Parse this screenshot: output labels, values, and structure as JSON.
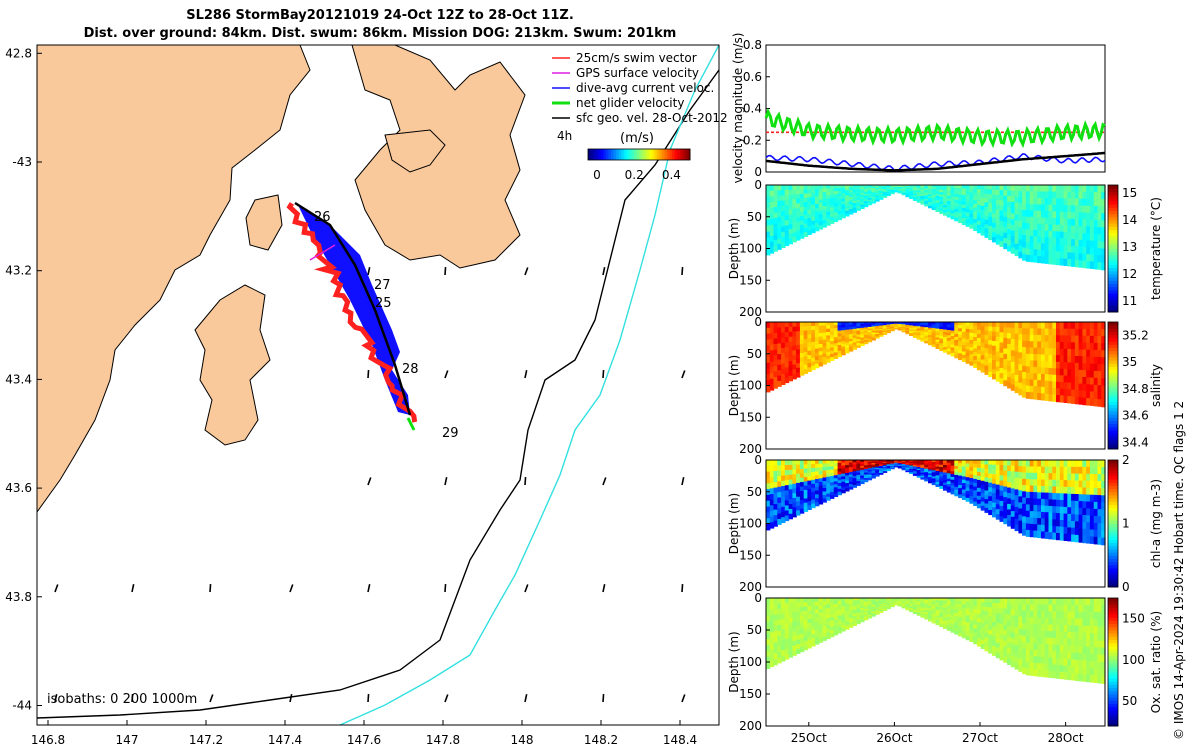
{
  "title": {
    "line1": "SL286 StormBay20121019 24-Oct 12Z to 28-Oct 11Z.",
    "line2": "Dist. over ground: 84km. Dist. swum: 86km. Mission DOG: 213km. Swum: 201km"
  },
  "colors": {
    "land": "#f9c89b",
    "sea": "#ffffff",
    "isobath_200": "#000000",
    "isobath_1000": "#33e0e0",
    "swim_vector": "#ff2020",
    "gps_velocity": "#e020e0",
    "dive_avg": "#1010ff",
    "net_glider": "#10e010",
    "sfc_geo": "#000000"
  },
  "map": {
    "lon_ticks": [
      "146.8",
      "147",
      "147.2",
      "147.4",
      "147.6",
      "147.8",
      "148",
      "148.2",
      "148.4"
    ],
    "lat_ticks": [
      "42.8",
      "-43",
      "43.2",
      "43.4",
      "43.6",
      "43.8",
      "-44"
    ],
    "day_labels": [
      "26",
      "27",
      "25",
      "28",
      "29"
    ],
    "isobaths_label": "isobaths: 0   200  1000m",
    "legend": [
      {
        "label": "25cm/s swim vector",
        "color": "#ff2020"
      },
      {
        "label": "GPS surface velocity",
        "color": "#e020e0"
      },
      {
        "label": "dive-avg current veloc.",
        "color": "#1010ff"
      },
      {
        "label": "net glider velocity",
        "color": "#10e010"
      },
      {
        "label": "sfc geo. vel. 28-Oct-2012",
        "color": "#000000"
      }
    ],
    "colorbar_prefix": "4h",
    "colorbar_unit": "(m/s)",
    "colorbar_ticks": [
      "0",
      "0.2",
      "0.4"
    ]
  },
  "chart_data": [
    {
      "type": "line",
      "title": "",
      "xlabel": "",
      "ylabel": "velocity magnitude (m/s)",
      "ylim": [
        0,
        0.8
      ],
      "yticks": [
        "0",
        "0.2",
        "0.4",
        "0.6",
        "0.8"
      ],
      "x_days": [
        24.5,
        25.0,
        25.5,
        26.0,
        26.5,
        27.0,
        27.5,
        28.0,
        28.46
      ],
      "series": [
        {
          "name": "swim vector",
          "color": "#ff2020",
          "values": [
            0.25,
            0.25,
            0.25,
            0.25,
            0.25,
            0.25,
            0.25,
            0.25,
            0.25
          ]
        },
        {
          "name": "net glider velocity",
          "color": "#10e010",
          "values": [
            0.34,
            0.26,
            0.24,
            0.23,
            0.25,
            0.22,
            0.22,
            0.25,
            0.26
          ]
        },
        {
          "name": "dive-avg current veloc.",
          "color": "#1010ff",
          "values": [
            0.09,
            0.08,
            0.05,
            0.02,
            0.05,
            0.06,
            0.1,
            0.07,
            0.08
          ]
        },
        {
          "name": "sfc geo. vel.",
          "color": "#000000",
          "values": [
            0.07,
            0.04,
            0.02,
            0.01,
            0.02,
            0.05,
            0.08,
            0.1,
            0.12
          ]
        }
      ]
    },
    {
      "type": "heatmap",
      "variable": "temperature",
      "clabel": "temperature (°C)",
      "ylabel": "Depth (m)",
      "ylim": [
        200,
        0
      ],
      "yticks": [
        "0",
        "50",
        "100",
        "150",
        "200"
      ],
      "crange": [
        10.6,
        15.3
      ],
      "cticks": [
        "11",
        "12",
        "13",
        "14",
        "15"
      ],
      "typical": 12.3
    },
    {
      "type": "heatmap",
      "variable": "salinity",
      "clabel": "salinity",
      "ylabel": "Depth (m)",
      "ylim": [
        200,
        0
      ],
      "yticks": [
        "0",
        "50",
        "100",
        "150",
        "200"
      ],
      "crange": [
        34.35,
        35.3
      ],
      "cticks": [
        "34.4",
        "34.6",
        "34.8",
        "35",
        "35.2"
      ],
      "typical": 35.05
    },
    {
      "type": "heatmap",
      "variable": "chl-a",
      "clabel": "chl-a (mg m-3)",
      "ylabel": "Depth (m)",
      "ylim": [
        200,
        0
      ],
      "yticks": [
        "0",
        "50",
        "100",
        "150",
        "200"
      ],
      "crange": [
        0,
        2
      ],
      "cticks": [
        "0",
        "1",
        "2"
      ],
      "typical": 0.6
    },
    {
      "type": "heatmap",
      "variable": "oxygen saturation",
      "clabel": "Ox. sat. ratio (%)",
      "ylabel": "Depth (m)",
      "ylim": [
        200,
        0
      ],
      "yticks": [
        "0",
        "50",
        "100",
        "150",
        "200"
      ],
      "crange": [
        20,
        175
      ],
      "cticks": [
        "50",
        "100",
        "150"
      ],
      "typical": 105,
      "xticks": [
        "25Oct",
        "26Oct",
        "27Oct",
        "28Oct"
      ]
    }
  ],
  "stamp": "© IMOS 14-Apr-2024 19:30:42 Hobart time. QC flags 1  2"
}
